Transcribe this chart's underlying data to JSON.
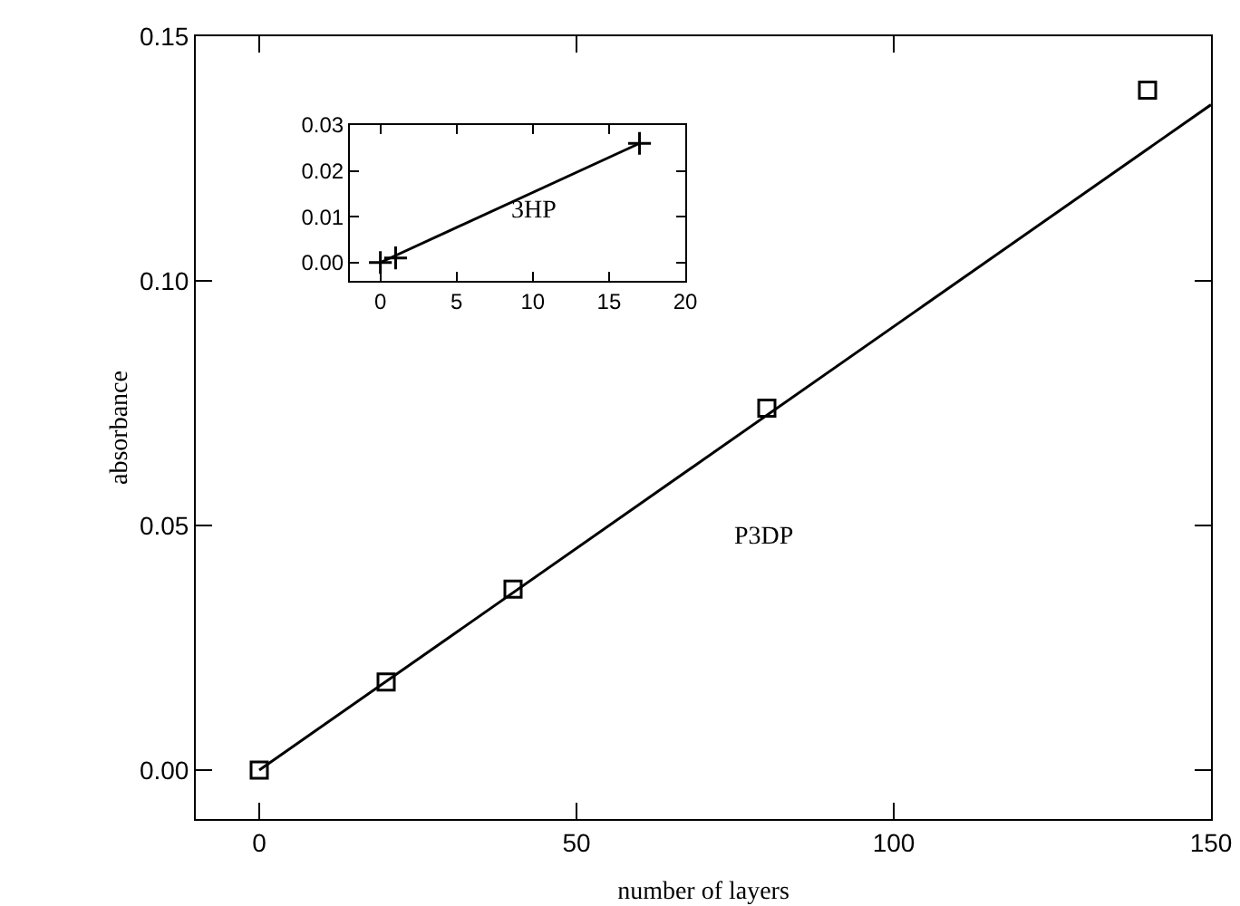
{
  "chart_data": [
    {
      "type": "scatter",
      "xlabel": "number of layers",
      "ylabel": "absorbance",
      "xlim": [
        -10,
        150
      ],
      "ylim": [
        -0.01,
        0.15
      ],
      "xticks": [
        0,
        50,
        100,
        150
      ],
      "yticks": [
        {
          "value": 0,
          "label": "0.00"
        },
        {
          "value": 0.05,
          "label": "0.05"
        },
        {
          "value": 0.1,
          "label": "0.10"
        },
        0.15
      ],
      "grid": false,
      "legend": false,
      "marker": "square",
      "series": [
        {
          "type": "scatter",
          "name": "P3DP",
          "color": "#000000",
          "x": [
            0,
            20,
            40,
            80,
            140
          ],
          "values": [
            0,
            0.018,
            0.037,
            0.074,
            0.139
          ]
        },
        {
          "type": "line",
          "color": "#000000",
          "marker": "none",
          "line_style": "solid",
          "x": [
            0,
            150
          ],
          "values": [
            0,
            0.136
          ]
        }
      ]
    },
    {
      "type": "scatter",
      "xlim": [
        -2,
        20
      ],
      "ylim": [
        -0.004,
        0.03
      ],
      "xticks": [
        0,
        5,
        10,
        15,
        20
      ],
      "yticks": [
        {
          "value": 0,
          "label": "0.00"
        },
        {
          "value": 0.01,
          "label": "0.01"
        },
        {
          "value": 0.02,
          "label": "0.02"
        },
        {
          "value": 0.03,
          "label": "0.03"
        }
      ],
      "grid": false,
      "legend": false,
      "marker": "cross",
      "series": [
        {
          "type": "scatter",
          "name": "3HP",
          "color": "#000000",
          "x": [
            0,
            1,
            17
          ],
          "values": [
            0,
            0.001,
            0.026
          ]
        },
        {
          "type": "line",
          "color": "#000000",
          "marker": "none",
          "line_style": "solid",
          "x": [
            0,
            17
          ],
          "values": [
            0,
            0.026
          ]
        }
      ]
    }
  ]
}
